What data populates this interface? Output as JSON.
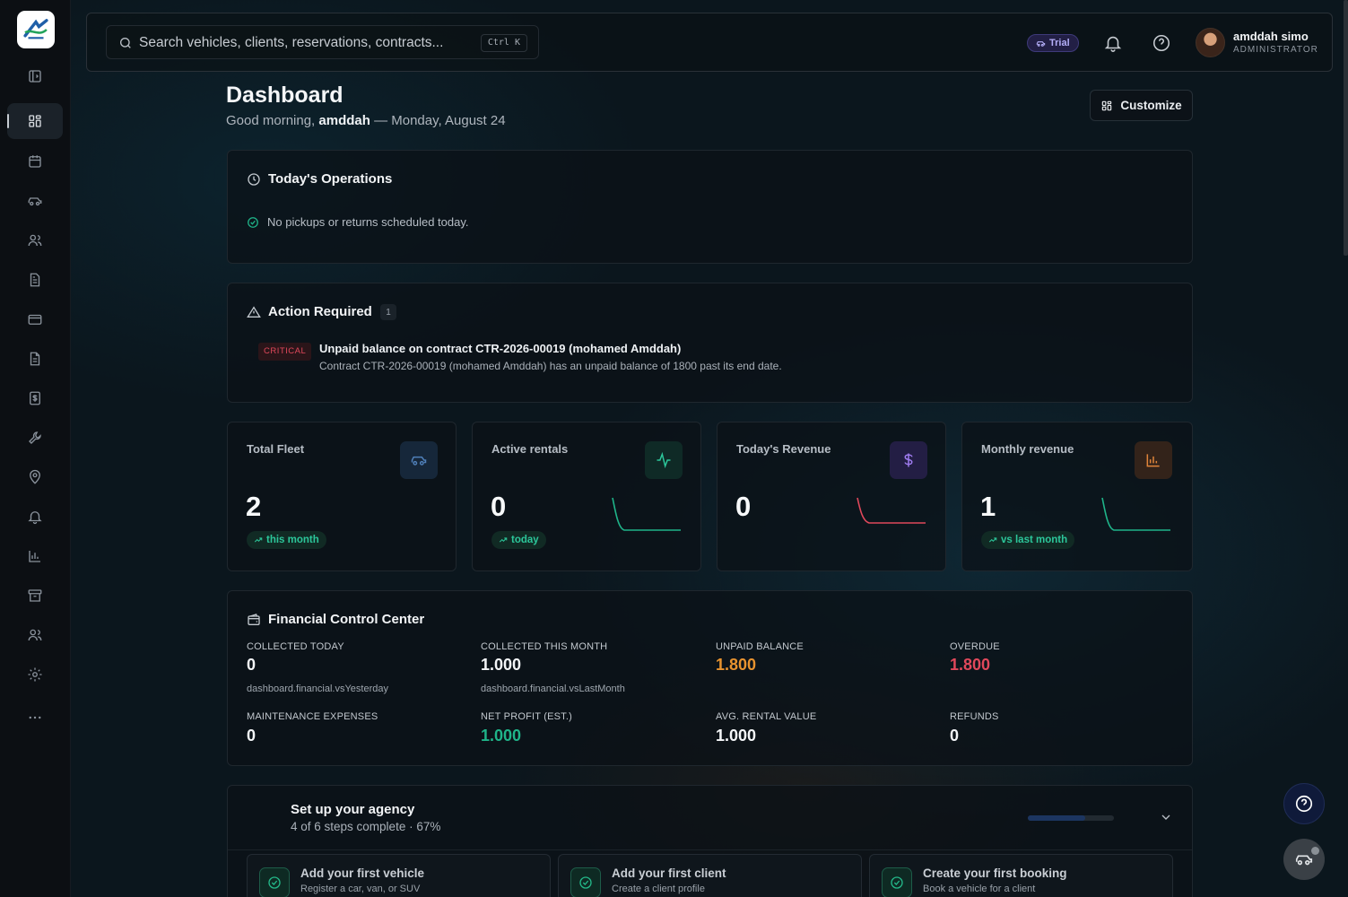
{
  "sidebar": {
    "items": [
      {
        "icon": "panel-toggle-icon",
        "name": "sidebar-toggle"
      },
      {
        "icon": "dashboard-icon",
        "name": "sidebar-item-dashboard",
        "active": true
      },
      {
        "icon": "calendar-icon",
        "name": "sidebar-item-reservations"
      },
      {
        "icon": "car-icon",
        "name": "sidebar-item-vehicles"
      },
      {
        "icon": "users-icon",
        "name": "sidebar-item-clients"
      },
      {
        "icon": "document-icon",
        "name": "sidebar-item-contracts"
      },
      {
        "icon": "credit-card-icon",
        "name": "sidebar-item-payments"
      },
      {
        "icon": "file-text-icon",
        "name": "sidebar-item-invoices"
      },
      {
        "icon": "receipt-dollar-icon",
        "name": "sidebar-item-expenses"
      },
      {
        "icon": "wrench-icon",
        "name": "sidebar-item-maintenance"
      },
      {
        "icon": "map-pin-icon",
        "name": "sidebar-item-locations"
      },
      {
        "icon": "bell-icon",
        "name": "sidebar-item-notifications"
      },
      {
        "icon": "bar-chart-icon",
        "name": "sidebar-item-reports"
      },
      {
        "icon": "archive-icon",
        "name": "sidebar-item-archive"
      },
      {
        "icon": "team-icon",
        "name": "sidebar-item-team"
      },
      {
        "icon": "gear-icon",
        "name": "sidebar-item-settings"
      },
      {
        "icon": "more-icon",
        "name": "sidebar-item-more"
      }
    ]
  },
  "header": {
    "search_placeholder": "Search vehicles, clients, reservations, contracts...",
    "search_shortcut": "Ctrl K",
    "trial_label": "Trial",
    "user_name": "amddah simo",
    "user_role": "ADMINISTRATOR"
  },
  "page": {
    "title": "Dashboard",
    "greeting_prefix": "Good morning, ",
    "greeting_name": "amddah",
    "greeting_suffix": " — Monday, August 24",
    "customize_label": "Customize"
  },
  "operations": {
    "title": "Today's Operations",
    "message": "No pickups or returns scheduled today."
  },
  "action_required": {
    "title": "Action Required",
    "count": "1",
    "alerts": [
      {
        "severity": "CRITICAL",
        "title": "Unpaid balance on contract CTR-2026-00019 (mohamed Amddah)",
        "description": "Contract CTR-2026-00019 (mohamed Amddah) has an unpaid balance of 1800 past its end date."
      }
    ]
  },
  "stats": [
    {
      "label": "Total Fleet",
      "value": "2",
      "pill": "this month",
      "icon": "car-icon",
      "icon_color": "#4f7fb8",
      "icon_bg": "#16273a"
    },
    {
      "label": "Active rentals",
      "value": "0",
      "pill": "today",
      "icon": "activity-icon",
      "icon_color": "#2cc69a",
      "icon_bg": "#0f2a26",
      "spark_color": "#1fb489"
    },
    {
      "label": "Today's Revenue",
      "value": "0",
      "pill": "",
      "icon": "dollar-icon",
      "icon_color": "#9f7cf0",
      "icon_bg": "#231e44",
      "spark_color": "#e0485b"
    },
    {
      "label": "Monthly revenue",
      "value": "1",
      "pill": "vs last month",
      "icon": "bar-chart-icon",
      "icon_color": "#e0843a",
      "icon_bg": "#33231a",
      "spark_color": "#1fb489"
    }
  ],
  "financial": {
    "title": "Financial Control Center",
    "metrics": [
      {
        "label": "COLLECTED TODAY",
        "value": "0",
        "sub": "dashboard.financial.vsYesterday",
        "color": "#f4f6f8"
      },
      {
        "label": "COLLECTED THIS MONTH",
        "value": "1.000",
        "sub": "dashboard.financial.vsLastMonth",
        "color": "#f4f6f8"
      },
      {
        "label": "UNPAID BALANCE",
        "value": "1.800",
        "sub": "",
        "color": "#e8932f"
      },
      {
        "label": "OVERDUE",
        "value": "1.800",
        "sub": "",
        "color": "#e0485b"
      },
      {
        "label": "MAINTENANCE EXPENSES",
        "value": "0",
        "sub": "",
        "color": "#f4f6f8"
      },
      {
        "label": "NET PROFIT (EST.)",
        "value": "1.000",
        "sub": "",
        "color": "#1fb489"
      },
      {
        "label": "AVG. RENTAL VALUE",
        "value": "1.000",
        "sub": "",
        "color": "#f4f6f8"
      },
      {
        "label": "REFUNDS",
        "value": "0",
        "sub": "",
        "color": "#f4f6f8"
      }
    ]
  },
  "setup": {
    "title": "Set up your agency",
    "subtitle": "4 of 6 steps complete · 67%",
    "progress": 0.67,
    "steps": [
      {
        "title": "Add your first vehicle",
        "subtitle": "Register a car, van, or SUV"
      },
      {
        "title": "Add your first client",
        "subtitle": "Create a client profile"
      },
      {
        "title": "Create your first booking",
        "subtitle": "Book a vehicle for a client"
      }
    ]
  }
}
